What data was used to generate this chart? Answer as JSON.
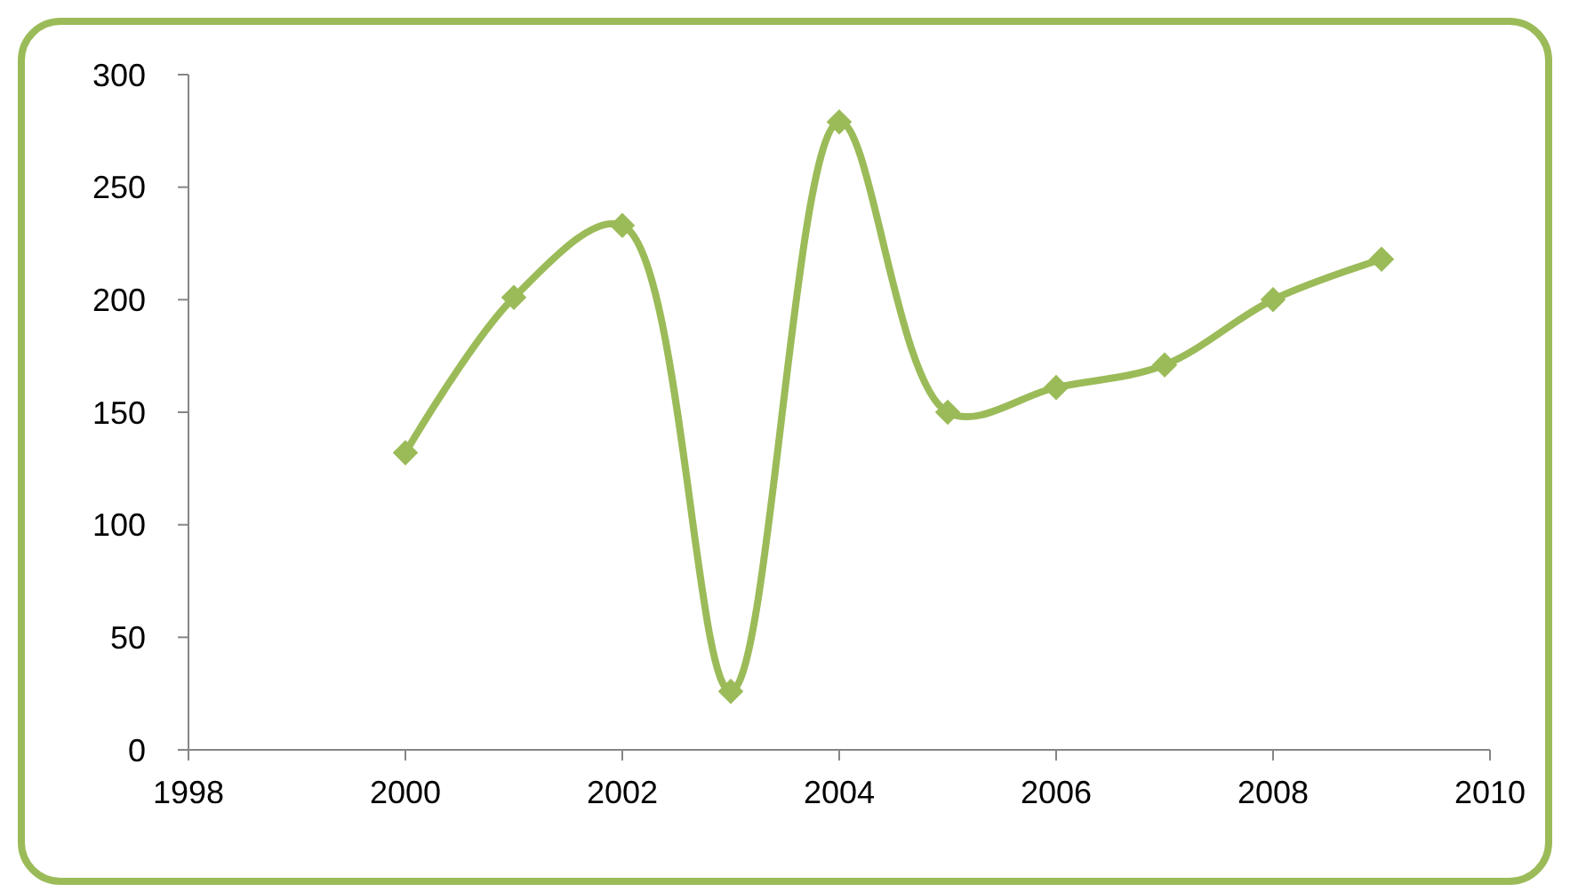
{
  "chart_data": {
    "type": "line",
    "x": [
      2000,
      2001,
      2002,
      2003,
      2004,
      2005,
      2006,
      2007,
      2008,
      2009
    ],
    "series": [
      {
        "color": "#9bbb59",
        "values": [
          132,
          201,
          233,
          26,
          279,
          150,
          161,
          171,
          200,
          218
        ]
      }
    ],
    "xlim": [
      1998,
      2010
    ],
    "xticks": [
      1998,
      2000,
      2002,
      2004,
      2006,
      2008,
      2010
    ],
    "ylim": [
      0,
      300
    ],
    "yticks": [
      0,
      50,
      100,
      150,
      200,
      250,
      300
    ],
    "marker": "diamond",
    "line_style": "solid",
    "grid": false
  }
}
